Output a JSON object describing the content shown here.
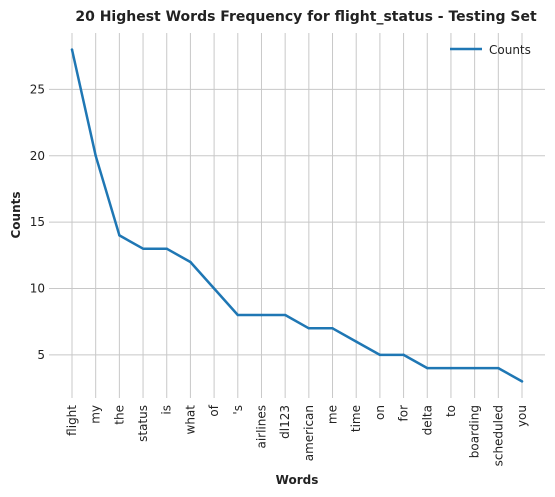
{
  "chart_data": {
    "type": "line",
    "title": "20 Highest Words Frequency for flight_status - Testing Set",
    "xlabel": "Words",
    "ylabel": "Counts",
    "categories": [
      "flight",
      "my",
      "the",
      "status",
      "is",
      "what",
      "of",
      "'s",
      "airlines",
      "dl123",
      "american",
      "me",
      "time",
      "on",
      "for",
      "delta",
      "to",
      "boarding",
      "scheduled",
      "you"
    ],
    "series": [
      {
        "name": "Counts",
        "values": [
          28,
          20,
          14,
          13,
          13,
          12,
          10,
          8,
          8,
          8,
          7,
          7,
          6,
          5,
          5,
          4,
          4,
          4,
          4,
          3
        ]
      }
    ],
    "ylim": [
      1.75,
      29.25
    ],
    "yticks": [
      5,
      10,
      15,
      20,
      25
    ],
    "grid": true,
    "legend": "top-right",
    "colors": {
      "line": "#1f77b4",
      "grid": "#c8c8c8",
      "text": "#222222"
    }
  }
}
